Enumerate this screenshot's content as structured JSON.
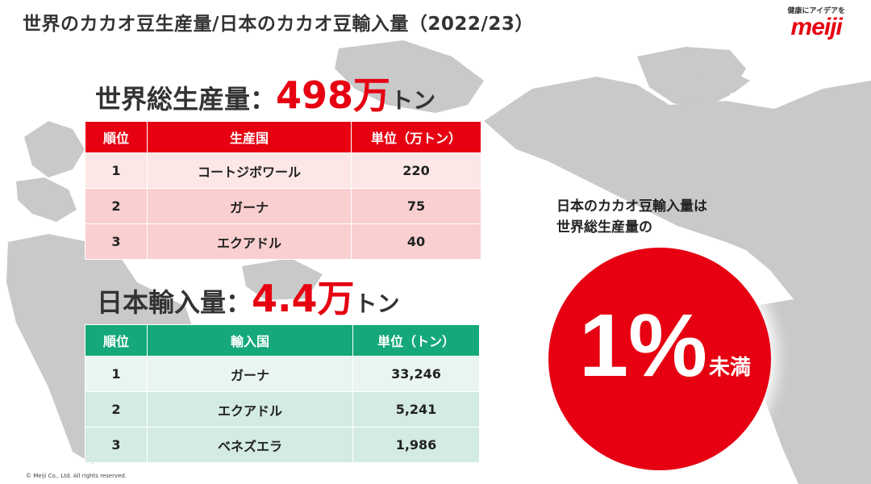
{
  "header": {
    "title": "世界のカカオ豆生産量/日本のカカオ豆輸入量（2022/23）",
    "brand_tagline": "健康にアイデアを",
    "brand_logo": "meiji"
  },
  "world": {
    "label": "世界総生産量",
    "colon": "：",
    "value": "498万",
    "unit": "トン",
    "table": {
      "headers": [
        "順位",
        "生産国",
        "単位（万トン）"
      ],
      "rows": [
        [
          "1",
          "コートジボワール",
          "220"
        ],
        [
          "2",
          "ガーナ",
          "75"
        ],
        [
          "3",
          "エクアドル",
          "40"
        ]
      ]
    }
  },
  "japan": {
    "label": "日本輸入量",
    "colon": "：",
    "value": "4.4万",
    "unit": "トン",
    "table": {
      "headers": [
        "順位",
        "輸入国",
        "単位（トン）"
      ],
      "rows": [
        [
          "1",
          "ガーナ",
          "33,246"
        ],
        [
          "2",
          "エクアドル",
          "5,241"
        ],
        [
          "3",
          "ベネズエラ",
          "1,986"
        ]
      ]
    }
  },
  "callout": {
    "line1": "日本のカカオ豆輸入量は",
    "line2": "世界総生産量の",
    "big": "1%",
    "small": "未満"
  },
  "footer": {
    "copyright": "© Meiji Co., Ltd. All rights reserved."
  },
  "colors": {
    "accent_red": "#e60012",
    "table_green": "#15a87a",
    "map_gray": "#c8c8c8"
  },
  "icons": {
    "background": "world-map-graphic"
  }
}
